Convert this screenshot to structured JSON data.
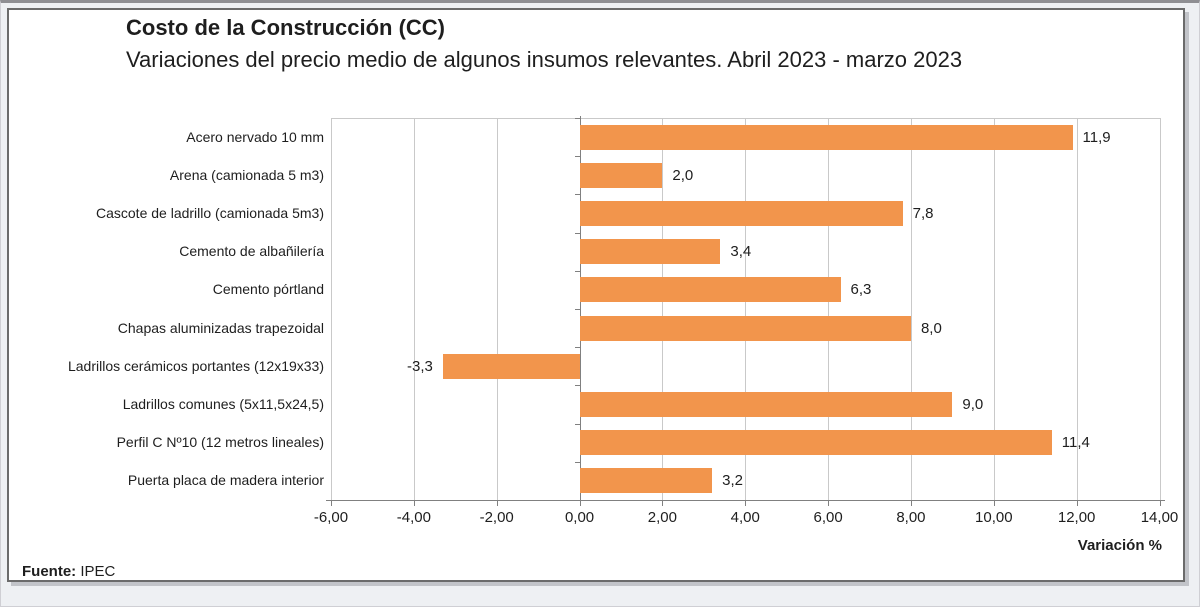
{
  "header": {
    "title": "Costo de la Construcción (CC)",
    "subtitle": "Variaciones del precio medio de algunos insumos relevantes. Abril 2023 - marzo 2023"
  },
  "source": {
    "label": "Fuente:",
    "value": "IPEC"
  },
  "colors": {
    "bar": "#F2954C",
    "gridline": "#C9C9C9",
    "axis": "#808080",
    "text": "#1E1E1E",
    "panel_border": "#6B6B6B"
  },
  "chart_data": {
    "type": "bar",
    "orientation": "horizontal",
    "title": "Costo de la Construcción (CC)",
    "subtitle": "Variaciones del precio medio de algunos insumos relevantes. Abril 2023 - marzo 2023",
    "categories": [
      "Acero nervado 10 mm",
      "Arena (camionada 5 m3)",
      "Cascote de ladrillo (camionada 5m3)",
      "Cemento de albañilería",
      "Cemento pórtland",
      "Chapas aluminizadas trapezoidal",
      "Ladrillos cerámicos portantes (12x19x33)",
      "Ladrillos comunes (5x11,5x24,5)",
      "Perfil C Nº10 (12 metros lineales)",
      "Puerta placa de madera interior"
    ],
    "values": [
      11.9,
      2.0,
      7.8,
      3.4,
      6.3,
      8.0,
      -3.3,
      9.0,
      11.4,
      3.2
    ],
    "value_labels": [
      "11,9",
      "2,0",
      "7,8",
      "3,4",
      "6,3",
      "8,0",
      "-3,3",
      "9,0",
      "11,4",
      "3,2"
    ],
    "xlim": [
      -6,
      14
    ],
    "x_ticks": [
      -6,
      -4,
      -2,
      0,
      2,
      4,
      6,
      8,
      10,
      12,
      14
    ],
    "x_tick_labels": [
      "-6,00",
      "-4,00",
      "-2,00",
      "0,00",
      "2,00",
      "4,00",
      "6,00",
      "8,00",
      "10,00",
      "12,00",
      "14,00"
    ],
    "xlabel": "Variación %",
    "grid": true,
    "legend": false,
    "bar_color": "#F2954C"
  }
}
